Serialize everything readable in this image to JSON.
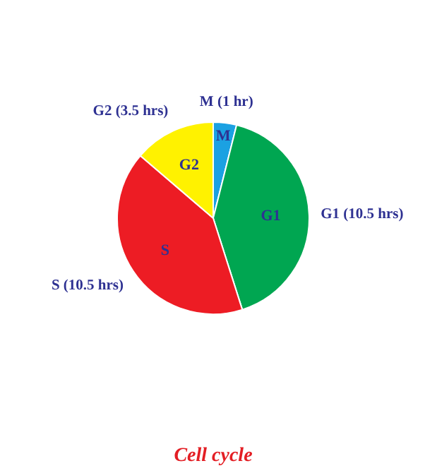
{
  "chart_data": {
    "type": "pie",
    "title": "Cell cycle",
    "categories": [
      "M",
      "G1",
      "S",
      "G2"
    ],
    "values": [
      1,
      10.5,
      10.5,
      3.5
    ],
    "colors": [
      "#1ba1e2",
      "#00a651",
      "#ed1c24",
      "#fff200"
    ],
    "value_labels": [
      "M (1 hr)",
      "G1 (10.5 hrs)",
      "S (10.5 hrs)",
      "G2 (3.5 hrs)"
    ]
  }
}
